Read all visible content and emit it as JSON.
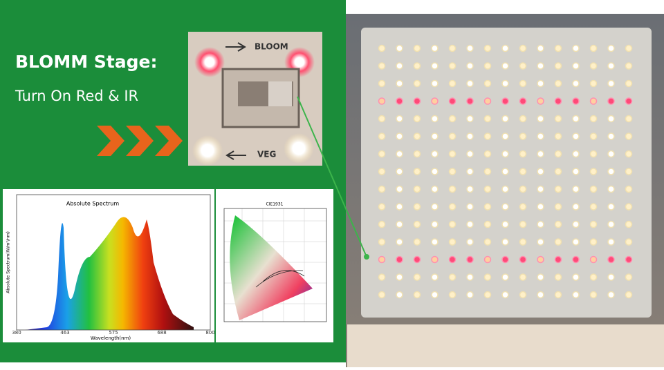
{
  "headline": {
    "title": "BLOMM Stage:",
    "subtitle": "Turn On Red & IR"
  },
  "switch_photo": {
    "top_label": "BLOOM",
    "bottom_label": "VEG"
  },
  "spectrum_chart": {
    "title": "Absolute Spectrum",
    "x_label": "Wavelength(nm)",
    "y_label": "Absolute Spectrum(W/m²/nm)",
    "x_ticks": [
      "380",
      "463",
      "575",
      "688",
      "800"
    ]
  },
  "cie_chart": {
    "title": "CIE1931"
  }
}
